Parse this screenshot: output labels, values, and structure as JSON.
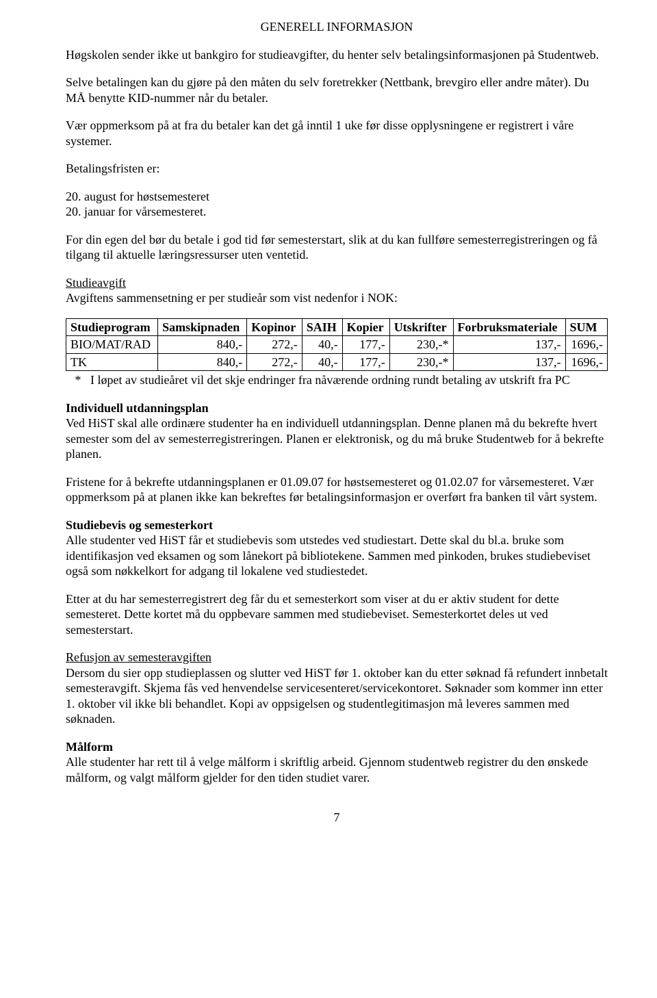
{
  "header": {
    "title": "GENERELL INFORMASJON"
  },
  "para": {
    "intro1": "Høgskolen sender ikke ut bankgiro for studieavgifter, du henter selv betalingsinformasjonen på Studentweb.",
    "intro2": "Selve betalingen kan du gjøre på den måten du selv foretrekker (Nettbank, brevgiro eller andre måter). Du MÅ benytte KID-nummer når du betaler.",
    "intro3": "Vær oppmerksom på at fra du betaler kan det gå inntil 1 uke før disse opplysningene er registrert i våre systemer.",
    "betalingsfrist_label": "Betalingsfristen er:",
    "betalingsfrist_l1": "20. august for høstsemesteret",
    "betalingsfrist_l2": "20. januar for vårsemesteret.",
    "para_egen": "For din egen del bør du betale i god tid før semesterstart, slik at du kan fullføre semesterregistreringen og få tilgang til aktuelle læringsressurser uten ventetid.",
    "studieavgift_heading": "Studieavgift",
    "studieavgift_desc": "Avgiftens sammensetning er per studieår som vist nedenfor i NOK:"
  },
  "table": {
    "columns": [
      "Studieprogram",
      "Samskipnaden",
      "Kopinor",
      "SAIH",
      "Kopier",
      "Utskrifter",
      "Forbruksmateriale",
      "SUM"
    ],
    "rows": [
      [
        "BIO/MAT/RAD",
        "840,-",
        "272,-",
        "40,-",
        "177,-",
        "230,-*",
        "137,-",
        "1696,-"
      ],
      [
        "TK",
        "840,-",
        "272,-",
        "40,-",
        "177,-",
        "230,-*",
        "137,-",
        "1696,-"
      ]
    ],
    "note_marker": "*",
    "note_text": "I løpet av studieåret vil det skje endringer fra nåværende ordning rundt betaling av utskrift fra PC"
  },
  "sections": {
    "indiv_heading": "Individuell utdanningsplan",
    "indiv_p1": "Ved HiST skal alle ordinære studenter ha en individuell utdanningsplan. Denne planen må du bekrefte hvert semester som del av semesterregistreringen. Planen er elektronisk, og du må bruke Studentweb for å bekrefte planen.",
    "indiv_p2": "Fristene for å bekrefte utdanningsplanen er 01.09.07 for høstsemesteret og 01.02.07 for vårsemesteret. Vær oppmerksom på at planen ikke kan bekreftes før betalingsinformasjon er overført fra banken til vårt system.",
    "studiebevis_heading": "Studiebevis og semesterkort",
    "studiebevis_p1": "Alle studenter ved HiST får et studiebevis som utstedes ved studiestart. Dette skal du bl.a. bruke som identifikasjon ved eksamen og som lånekort på bibliotekene. Sammen med pinkoden, brukes studiebeviset også som nøkkelkort for adgang til lokalene ved studiestedet.",
    "studiebevis_p2": "Etter at du har semesterregistrert deg får du et semesterkort som viser at du er aktiv student for dette semesteret. Dette kortet må du oppbevare sammen med studiebeviset. Semesterkortet deles ut ved semesterstart.",
    "refusjon_heading": "Refusjon av semesteravgiften",
    "refusjon_p1": "Dersom du sier opp studieplassen og slutter ved HiST før 1. oktober kan du etter søknad få refundert innbetalt semesteravgift. Skjema fås ved henvendelse servicesenteret/servicekontoret. Søknader som kommer inn etter 1. oktober vil ikke bli behandlet. Kopi av oppsigelsen og studentlegitimasjon må leveres sammen med søknaden.",
    "malform_heading": "Målform",
    "malform_p1": "Alle studenter har rett til å velge målform i skriftlig arbeid. Gjennom studentweb registrer du den ønskede målform, og valgt målform gjelder for den tiden studiet varer."
  },
  "footer": {
    "page_number": "7"
  }
}
